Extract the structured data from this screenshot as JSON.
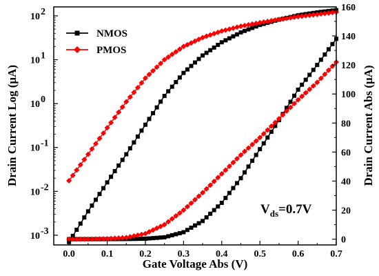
{
  "chart_data": {
    "type": "line",
    "title": "",
    "xlabel": "Gate Voltage Abs (V)",
    "ylabel_left": "Drain Current Log (μA)",
    "ylabel_right": "Drain Current Abs (μA)",
    "xlim": [
      -0.04,
      0.7
    ],
    "ylim_left_log": [
      0.0006,
      160
    ],
    "ylim_right": [
      -4,
      160
    ],
    "x_ticks": [
      0.0,
      0.1,
      0.2,
      0.3,
      0.4,
      0.5,
      0.6,
      0.7
    ],
    "x_tick_labels": [
      "0.0",
      "0.1",
      "0.2",
      "0.3",
      "0.4",
      "0.5",
      "0.6",
      "0.7"
    ],
    "y_left_ticks": [
      {
        "base": "10",
        "exp": "-3",
        "value": 0.001
      },
      {
        "base": "10",
        "exp": "-2",
        "value": 0.01
      },
      {
        "base": "10",
        "exp": "-1",
        "value": 0.1
      },
      {
        "base": "10",
        "exp": "0",
        "value": 1
      },
      {
        "base": "10",
        "exp": "1",
        "value": 10
      },
      {
        "base": "10",
        "exp": "2",
        "value": 100
      }
    ],
    "y_right_ticks": [
      0,
      20,
      40,
      60,
      80,
      100,
      120,
      140,
      160
    ],
    "y_right_tick_labels": [
      "0",
      "20",
      "40",
      "60",
      "80",
      "100",
      "120",
      "140",
      "160"
    ],
    "legend_position": "top-left",
    "annotation": {
      "main": "V",
      "sub": "ds",
      "rest": "=0.7V"
    },
    "series": [
      {
        "name": "NMOS",
        "color": "#000000",
        "marker": "square",
        "x": [
          0.0,
          0.05,
          0.1,
          0.15,
          0.2,
          0.25,
          0.3,
          0.35,
          0.4,
          0.45,
          0.5,
          0.55,
          0.6,
          0.65,
          0.7
        ],
        "log_scale_values": [
          0.0007,
          0.0035,
          0.016,
          0.07,
          0.33,
          1.5,
          5.0,
          12.5,
          25,
          42,
          62,
          82,
          103,
          120,
          135
        ],
        "linear_scale_values": [
          0,
          0,
          0.02,
          0.07,
          0.3,
          1.3,
          4.8,
          12.5,
          25,
          42,
          62,
          82,
          103,
          120,
          138
        ]
      },
      {
        "name": "PMOS",
        "color": "#ff0000",
        "marker": "diamond",
        "x": [
          0.0,
          0.05,
          0.1,
          0.15,
          0.2,
          0.25,
          0.3,
          0.35,
          0.4,
          0.45,
          0.5,
          0.55,
          0.6,
          0.65,
          0.7
        ],
        "log_scale_values": [
          0.0175,
          0.07,
          0.28,
          1.1,
          3.8,
          10,
          20,
          32,
          45,
          58,
          70,
          83,
          96,
          108,
          122
        ],
        "linear_scale_values": [
          0,
          0,
          0.3,
          1.1,
          3.8,
          10,
          20,
          32,
          45,
          58,
          70,
          83,
          96,
          108,
          122
        ]
      }
    ]
  }
}
